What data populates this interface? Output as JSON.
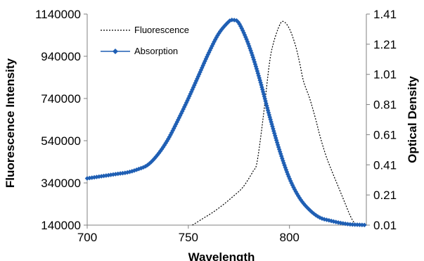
{
  "chart_data": {
    "type": "line",
    "xlabel": "Wavelength",
    "ylabel_left": "Fluorescence Intensity",
    "ylabel_right": "Optical Density",
    "x_ticks": [
      "700",
      "750",
      "800"
    ],
    "y_left_ticks": [
      "140000",
      "340000",
      "540000",
      "740000",
      "940000",
      "1140000"
    ],
    "y_right_ticks": [
      "0.01",
      "0.21",
      "0.41",
      "0.61",
      "0.81",
      "1.01",
      "1.21",
      "1.41"
    ],
    "xlim": [
      700,
      838
    ],
    "ylim_left": [
      140000,
      1140000
    ],
    "ylim_right": [
      0.01,
      1.41
    ],
    "grid": false,
    "legend_position": "top-left",
    "series": [
      {
        "name": "Fluorescence",
        "axis": "left",
        "style": "dotted",
        "color": "#000000",
        "x": [
          752,
          757,
          762,
          767,
          772,
          777,
          782,
          784,
          787,
          790,
          792,
          795,
          797,
          800,
          803,
          805,
          807,
          810,
          813,
          815,
          818,
          821,
          824,
          827,
          830,
          832
        ],
        "y": [
          140000,
          170000,
          200000,
          235000,
          275000,
          320000,
          395000,
          440000,
          650000,
          900000,
          1000000,
          1085000,
          1105000,
          1070000,
          990000,
          910000,
          820000,
          740000,
          640000,
          565000,
          470000,
          395000,
          325000,
          255000,
          185000,
          150000
        ]
      },
      {
        "name": "Absorption",
        "axis": "right",
        "style": "line-with-diamond-markers",
        "color": "#1f5fb4",
        "x": [
          700,
          705,
          710,
          715,
          720,
          725,
          730,
          735,
          740,
          745,
          750,
          755,
          760,
          765,
          770,
          772,
          775,
          780,
          785,
          790,
          795,
          800,
          805,
          810,
          815,
          820,
          825,
          830,
          835,
          838
        ],
        "y": [
          0.32,
          0.33,
          0.34,
          0.35,
          0.36,
          0.38,
          0.41,
          0.48,
          0.58,
          0.71,
          0.85,
          1.0,
          1.15,
          1.28,
          1.36,
          1.37,
          1.35,
          1.2,
          0.99,
          0.74,
          0.51,
          0.32,
          0.19,
          0.11,
          0.06,
          0.04,
          0.025,
          0.015,
          0.012,
          0.01
        ]
      }
    ]
  }
}
